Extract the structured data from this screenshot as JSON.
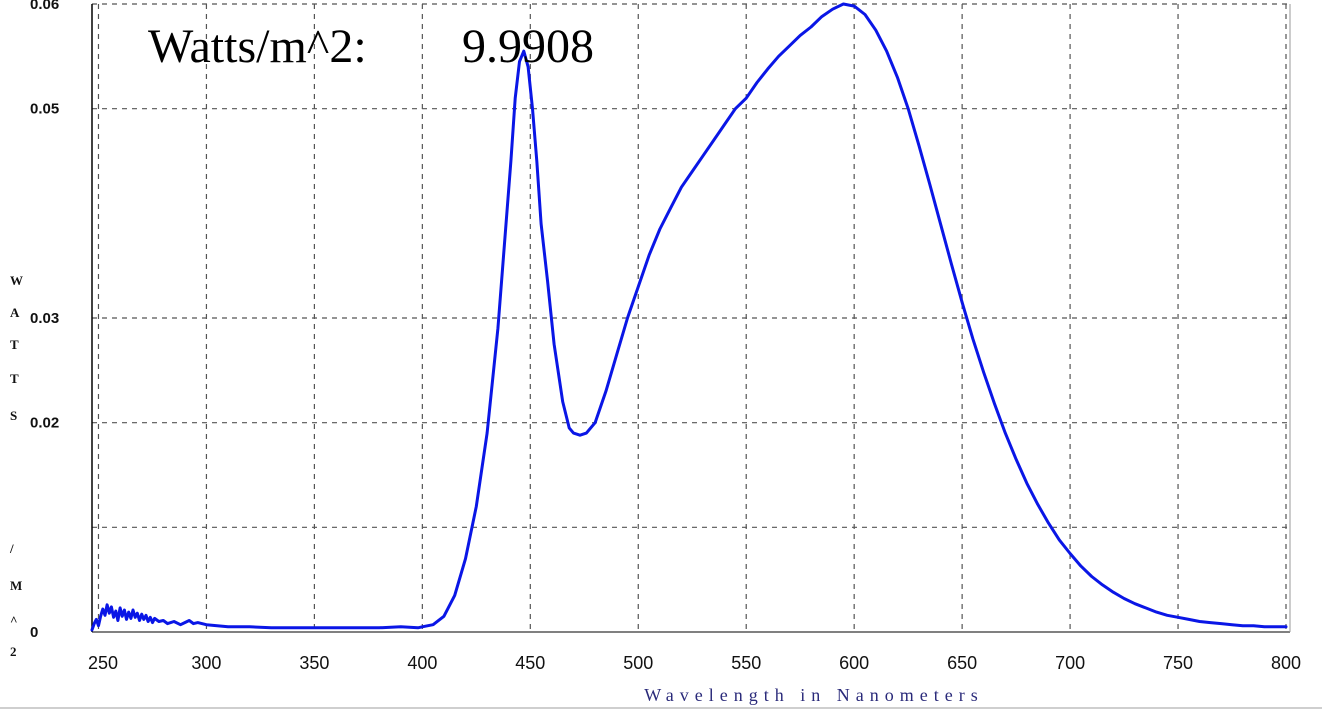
{
  "chart_data": {
    "type": "line",
    "title": "Watts/m^2:",
    "title_value": "9.9908",
    "xlabel": "Wavelength in Nanometers",
    "ylabel_chars": [
      "W",
      "A",
      "T",
      "T",
      "S",
      "/",
      "M",
      "^",
      "2"
    ],
    "xlim": [
      247,
      800
    ],
    "ylim": [
      0,
      0.06
    ],
    "x_ticks": [
      250,
      300,
      350,
      400,
      450,
      500,
      550,
      600,
      650,
      700,
      750,
      800
    ],
    "x_tick_labels": [
      "250",
      "300",
      "350",
      "400",
      "450",
      "500",
      "550",
      "600",
      "650",
      "700",
      "750",
      "800"
    ],
    "y_ticks": [
      0,
      0.01,
      0.02,
      0.03,
      0.05,
      0.06
    ],
    "y_tick_labels": [
      "0",
      "",
      "0.02",
      "0.03",
      "0.05",
      "0.06"
    ],
    "grid": true,
    "line_color": "#0a16e6",
    "series": [
      {
        "x": [
          247,
          248,
          249,
          250,
          251,
          252,
          253,
          254,
          255,
          256,
          257,
          258,
          259,
          260,
          261,
          262,
          263,
          264,
          265,
          266,
          267,
          268,
          269,
          270,
          271,
          272,
          273,
          274,
          275,
          276,
          278,
          280,
          282,
          285,
          288,
          290,
          292,
          294,
          296,
          300,
          305,
          310,
          320,
          330,
          340,
          350,
          360,
          370,
          380,
          390,
          398,
          400,
          405,
          410,
          415,
          420,
          425,
          430,
          435,
          438,
          441,
          443,
          445,
          447,
          449,
          451,
          453,
          455,
          458,
          461,
          465,
          468,
          470,
          473,
          476,
          480,
          485,
          490,
          495,
          500,
          505,
          510,
          515,
          520,
          525,
          530,
          535,
          540,
          545,
          550,
          555,
          560,
          565,
          570,
          575,
          580,
          585,
          590,
          595,
          600,
          605,
          610,
          615,
          620,
          625,
          630,
          635,
          640,
          645,
          650,
          655,
          660,
          665,
          670,
          675,
          680,
          685,
          690,
          695,
          700,
          705,
          710,
          715,
          720,
          725,
          730,
          735,
          740,
          745,
          750,
          755,
          760,
          765,
          770,
          775,
          780,
          785,
          790,
          795,
          800
        ],
        "y": [
          0.0002,
          0.0008,
          0.0012,
          0.0006,
          0.0015,
          0.0022,
          0.0016,
          0.0026,
          0.0018,
          0.0024,
          0.0014,
          0.002,
          0.0011,
          0.0023,
          0.0015,
          0.0021,
          0.0012,
          0.0019,
          0.0013,
          0.0021,
          0.0014,
          0.0018,
          0.0011,
          0.0017,
          0.0012,
          0.0016,
          0.001,
          0.0014,
          0.0009,
          0.0013,
          0.001,
          0.0011,
          0.0008,
          0.001,
          0.0007,
          0.0009,
          0.0011,
          0.0008,
          0.0009,
          0.0007,
          0.0006,
          0.0005,
          0.0005,
          0.0004,
          0.0004,
          0.0004,
          0.0004,
          0.0004,
          0.0004,
          0.0005,
          0.0004,
          0.0005,
          0.0007,
          0.0015,
          0.0035,
          0.007,
          0.012,
          0.019,
          0.029,
          0.037,
          0.045,
          0.051,
          0.0545,
          0.0555,
          0.054,
          0.05,
          0.045,
          0.039,
          0.0335,
          0.0275,
          0.022,
          0.0195,
          0.019,
          0.0188,
          0.019,
          0.02,
          0.023,
          0.0265,
          0.03,
          0.033,
          0.036,
          0.0385,
          0.0405,
          0.0425,
          0.044,
          0.0455,
          0.047,
          0.0485,
          0.05,
          0.051,
          0.0525,
          0.0538,
          0.055,
          0.056,
          0.057,
          0.0578,
          0.0588,
          0.0595,
          0.06,
          0.0598,
          0.059,
          0.0575,
          0.0555,
          0.053,
          0.05,
          0.0465,
          0.0428,
          0.039,
          0.0352,
          0.0315,
          0.028,
          0.0248,
          0.0218,
          0.019,
          0.0165,
          0.0142,
          0.0122,
          0.0104,
          0.0088,
          0.0075,
          0.0063,
          0.0053,
          0.0045,
          0.0038,
          0.0032,
          0.0027,
          0.0023,
          0.0019,
          0.0016,
          0.0014,
          0.0012,
          0.001,
          0.0009,
          0.0008,
          0.0007,
          0.0006,
          0.0006,
          0.0005,
          0.0005,
          0.0005
        ]
      }
    ]
  }
}
